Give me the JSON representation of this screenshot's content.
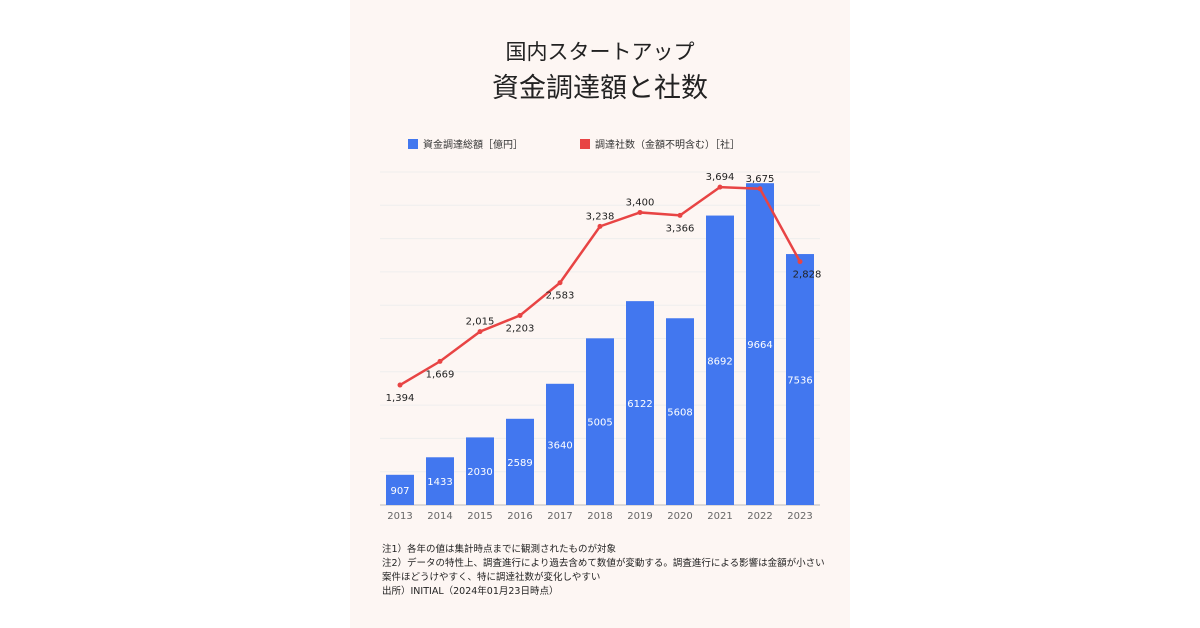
{
  "title_line1": "国内スタートアップ",
  "title_line2": "資金調達額と社数",
  "notes": [
    "注1）各年の値は集計時点までに観測されたものが対象",
    "注2）データの特性上、調査進行により過去含めて数値が変動する。調査進行による影響は金額が小さい案件ほどうけやすく、特に調達社数が変化しやすい",
    "出所）INITIAL（2024年01月23日時点）"
  ],
  "chart_data": {
    "type": "bar+line",
    "title": "国内スタートアップ 資金調達額と社数",
    "categories": [
      "2013",
      "2014",
      "2015",
      "2016",
      "2017",
      "2018",
      "2019",
      "2020",
      "2021",
      "2022",
      "2023"
    ],
    "series": [
      {
        "name": "資金調達総額［億円］",
        "type": "bar",
        "color": "#4277ef",
        "values": [
          907,
          1433,
          2030,
          2589,
          3640,
          5005,
          6122,
          5608,
          8692,
          9664,
          7536
        ],
        "labels": [
          "907",
          "1433",
          "2030",
          "2589",
          "3640",
          "5005",
          "6122",
          "5608",
          "8692",
          "9664",
          "7536"
        ]
      },
      {
        "name": "調達社数（金額不明含む）［社］",
        "type": "line",
        "color": "#e84444",
        "values": [
          1394,
          1669,
          2015,
          2203,
          2583,
          3238,
          3400,
          3366,
          3694,
          3675,
          2828
        ],
        "labels": [
          "1,394",
          "1,669",
          "2,015",
          "2,203",
          "2,583",
          "3,238",
          "3,400",
          "3,366",
          "3,694",
          "3,675",
          "2,828"
        ]
      }
    ],
    "ylim": [
      0,
      10000
    ],
    "y2lim": [
      0,
      3870
    ],
    "grid": true,
    "legend": "top-left"
  }
}
